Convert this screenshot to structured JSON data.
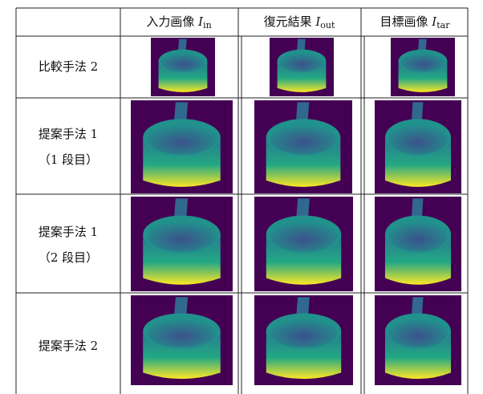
{
  "table": {
    "header": [
      {
        "label": "入力画像",
        "symbol": "I",
        "subscript": "in"
      },
      {
        "label": "復元結果",
        "symbol": "I",
        "subscript": "out"
      },
      {
        "label": "目標画像",
        "symbol": "I",
        "subscript": "tar"
      }
    ],
    "rows": [
      {
        "method": [
          "比較手法 2"
        ]
      },
      {
        "method": [
          "提案手法 1",
          "（1 段目）"
        ]
      },
      {
        "method": [
          "提案手法 1",
          "（2 段目）"
        ]
      },
      {
        "method": [
          "提案手法 2"
        ]
      }
    ]
  }
}
